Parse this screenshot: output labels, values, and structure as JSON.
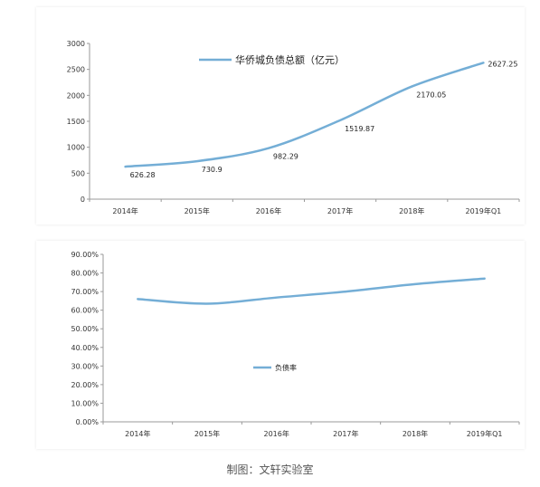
{
  "chart_data": [
    {
      "type": "line",
      "categories": [
        "2014年",
        "2015年",
        "2016年",
        "2017年",
        "2018年",
        "2019年Q1"
      ],
      "series": [
        {
          "name": "华侨城负债总额（亿元）",
          "values": [
            626.28,
            730.9,
            982.29,
            1519.87,
            2170.05,
            2627.25
          ],
          "color": "#74aed6"
        }
      ],
      "data_labels": [
        "626.28",
        "730.9",
        "982.29",
        "1519.87",
        "2170.05",
        "2627.25"
      ],
      "yticks": [
        "0",
        "500",
        "1000",
        "1500",
        "2000",
        "2500",
        "3000"
      ],
      "ylim": [
        0,
        3000
      ],
      "legend_position": "top-center",
      "grid": false
    },
    {
      "type": "line",
      "categories": [
        "2014年",
        "2015年",
        "2016年",
        "2017年",
        "2018年",
        "2019年Q1"
      ],
      "series": [
        {
          "name": "负债率",
          "values": [
            0.66,
            0.635,
            0.668,
            0.7,
            0.74,
            0.77
          ],
          "color": "#74aed6"
        }
      ],
      "yticks": [
        "0.00%",
        "10.00%",
        "20.00%",
        "30.00%",
        "40.00%",
        "50.00%",
        "60.00%",
        "70.00%",
        "80.00%",
        "90.00%"
      ],
      "ylim": [
        0,
        0.9
      ],
      "legend_position": "center",
      "grid": false
    }
  ],
  "caption": "制图：文轩实验室"
}
